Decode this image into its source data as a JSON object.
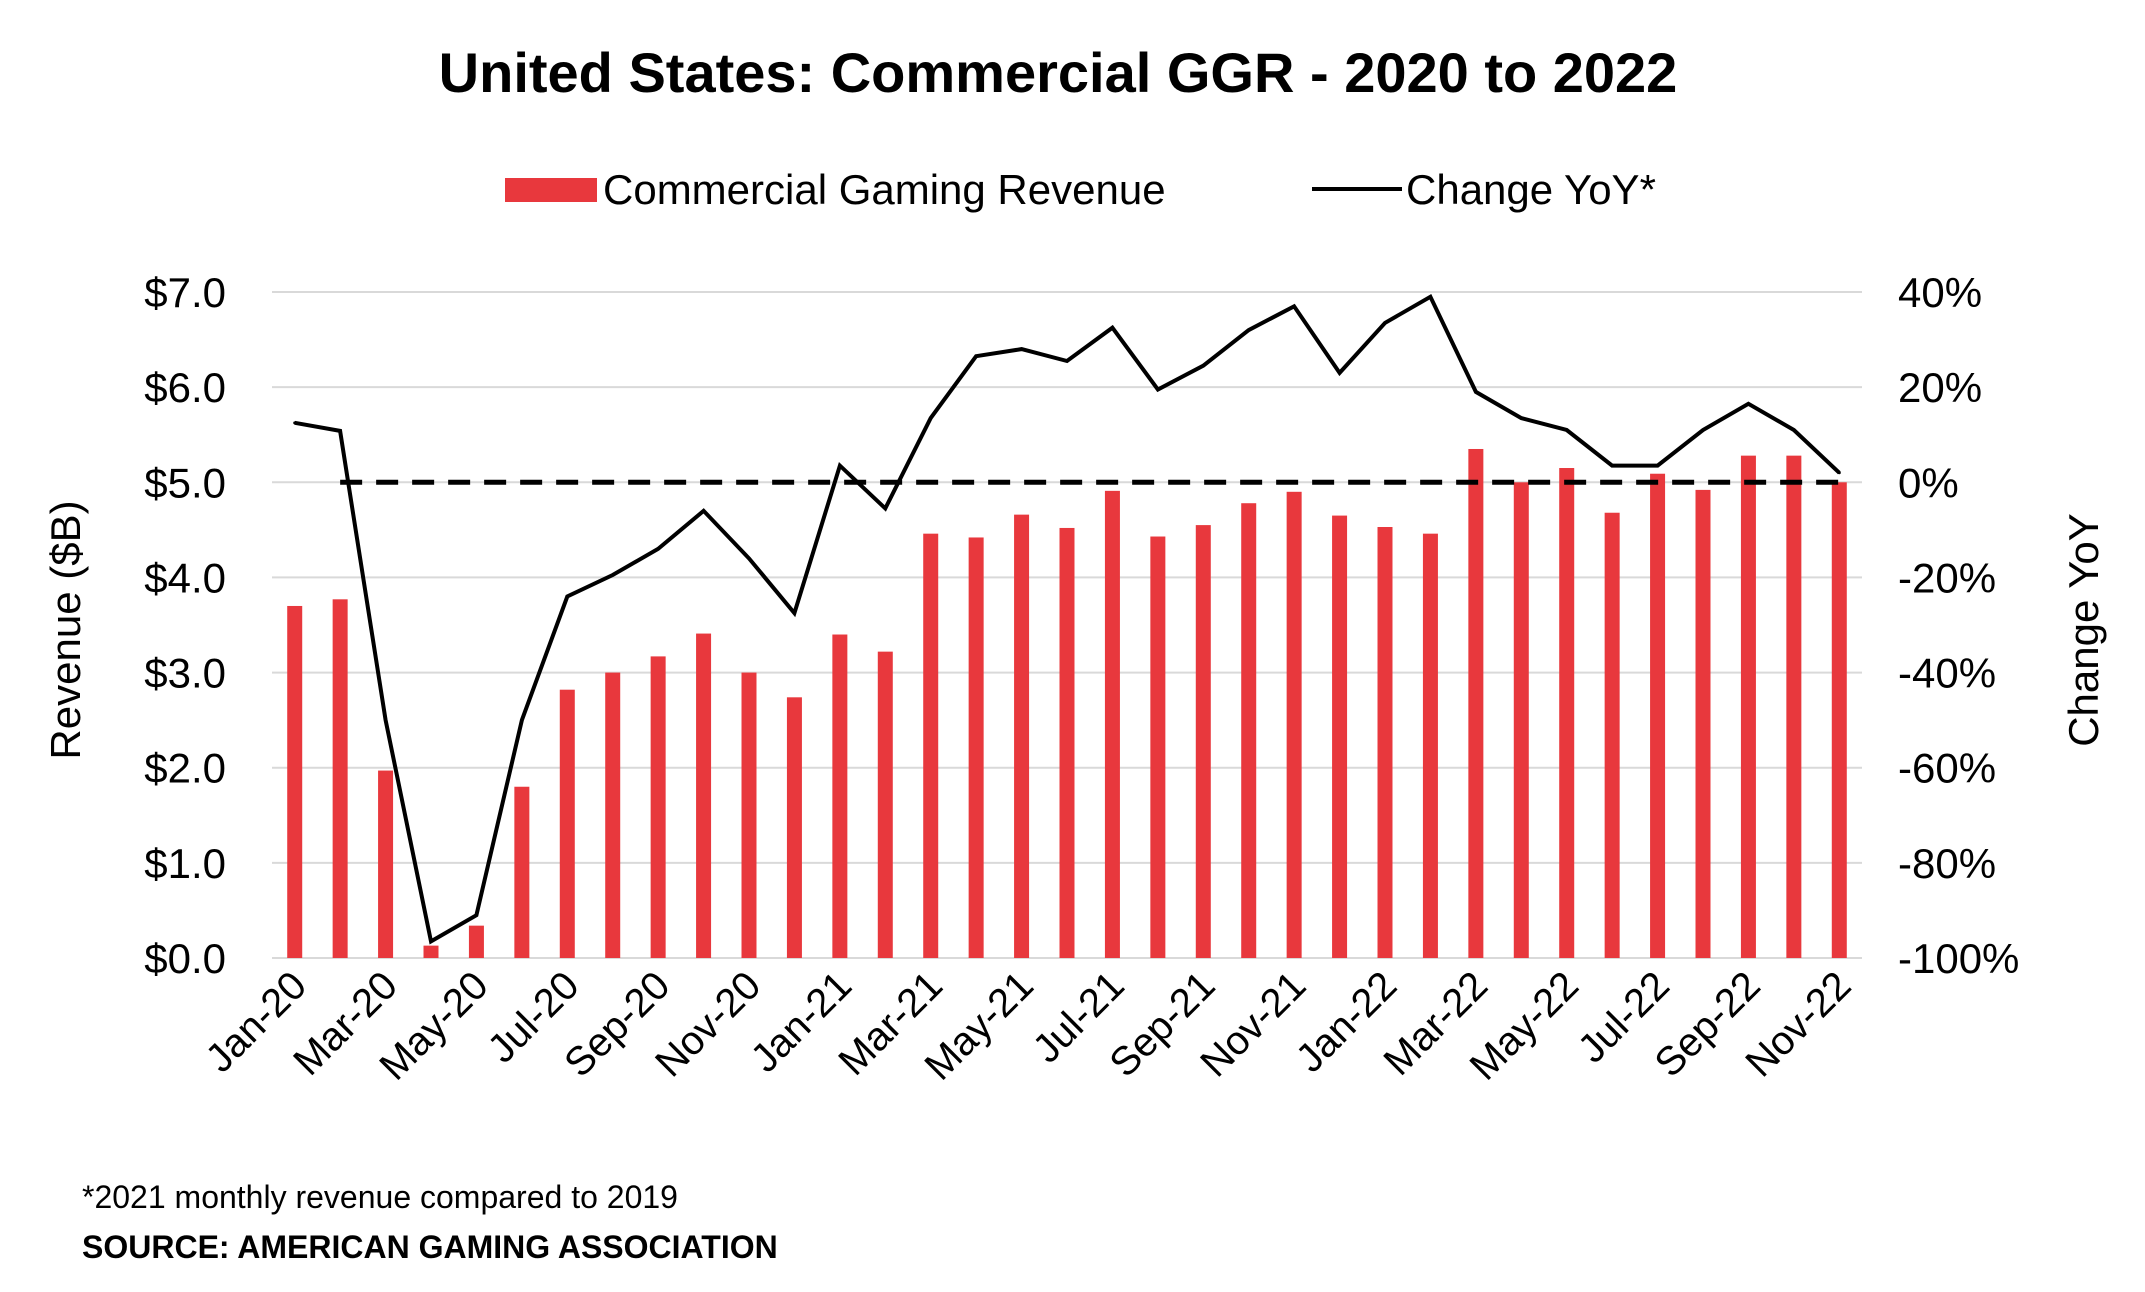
{
  "chart_data": {
    "type": "bar+line",
    "title": "United States: Commercial GGR - 2020 to 2022",
    "legend": {
      "placement": "top-center",
      "entries": [
        "Commercial Gaming Revenue",
        "Change YoY*"
      ]
    },
    "ylabel_left": "Revenue ($B)",
    "ylabel_right": "Change YoY",
    "ylim_left": [
      0,
      7
    ],
    "ylim_right": [
      -100,
      40
    ],
    "yticks_left": [
      "$0.0",
      "$1.0",
      "$2.0",
      "$3.0",
      "$4.0",
      "$5.0",
      "$6.0",
      "$7.0"
    ],
    "yticks_right": [
      "-100%",
      "-80%",
      "-60%",
      "-40%",
      "-20%",
      "0%",
      "20%",
      "40%"
    ],
    "grid": true,
    "categories": [
      "Jan-20",
      "Feb-20",
      "Mar-20",
      "Apr-20",
      "May-20",
      "Jun-20",
      "Jul-20",
      "Aug-20",
      "Sep-20",
      "Oct-20",
      "Nov-20",
      "Dec-20",
      "Jan-21",
      "Feb-21",
      "Mar-21",
      "Apr-21",
      "May-21",
      "Jun-21",
      "Jul-21",
      "Aug-21",
      "Sep-21",
      "Oct-21",
      "Nov-21",
      "Dec-21",
      "Jan-22",
      "Feb-22",
      "Mar-22",
      "Apr-22",
      "May-22",
      "Jun-22",
      "Jul-22",
      "Aug-22",
      "Sep-22",
      "Oct-22",
      "Nov-22"
    ],
    "xtick_labels": [
      "Jan-20",
      "Mar-20",
      "May-20",
      "Jul-20",
      "Sep-20",
      "Nov-20",
      "Jan-21",
      "Mar-21",
      "May-21",
      "Jul-21",
      "Sep-21",
      "Nov-21",
      "Jan-22",
      "Mar-22",
      "May-22",
      "Jul-22",
      "Sep-22",
      "Nov-22"
    ],
    "series": [
      {
        "name": "Commercial Gaming Revenue",
        "type": "bar",
        "axis": "left",
        "color": "#e8383d",
        "values": [
          3.7,
          3.77,
          1.97,
          0.13,
          0.34,
          1.8,
          2.82,
          3.0,
          3.17,
          3.41,
          3.0,
          2.74,
          3.4,
          3.22,
          4.46,
          4.42,
          4.66,
          4.52,
          4.91,
          4.43,
          4.55,
          4.78,
          4.9,
          4.65,
          4.53,
          4.46,
          5.35,
          5.0,
          5.15,
          4.68,
          5.09,
          4.92,
          5.28,
          5.28,
          5.0
        ]
      },
      {
        "name": "Change YoY*",
        "type": "line",
        "axis": "right",
        "color": "#000000",
        "values": [
          12.5,
          10.8,
          -50.0,
          -96.5,
          -91.0,
          -50.0,
          -24.0,
          -19.5,
          -14.0,
          -6.0,
          -16.0,
          -27.5,
          3.5,
          -5.5,
          13.5,
          26.5,
          28.0,
          25.5,
          32.5,
          19.5,
          24.5,
          32.0,
          37.0,
          23.0,
          33.5,
          39.0,
          19.0,
          13.5,
          11.0,
          3.5,
          3.5,
          11.0,
          16.5,
          11.0,
          2.0
        ]
      }
    ],
    "reference_line": {
      "axis": "right",
      "value": 0,
      "style": "dashed"
    },
    "footnote": "*2021 monthly revenue compared to 2019",
    "source": "SOURCE: AMERICAN GAMING ASSOCIATION"
  }
}
